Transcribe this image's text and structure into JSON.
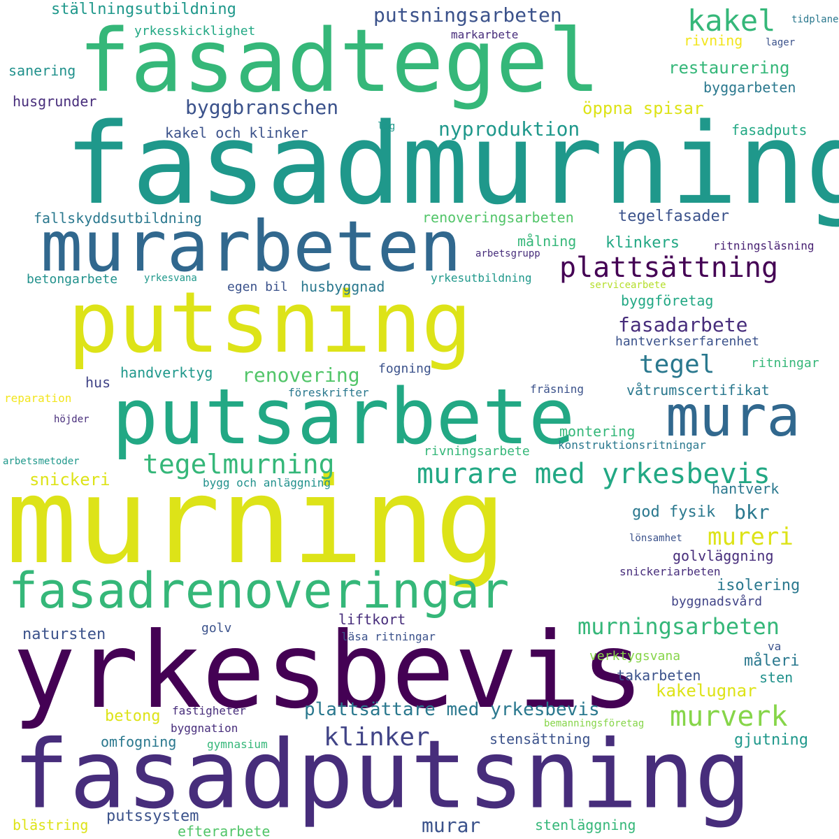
{
  "words": [
    "fasadtegel",
    "fasadmurning",
    "murarbeten",
    "putsning",
    "putsarbete",
    "murning",
    "yrkesbevis",
    "fasadputsning",
    "fasadrenoveringar",
    "mura",
    "plattsättning",
    "murare med yrkesbevis",
    "tegelmurning",
    "kakel",
    "putsningsarbeten",
    "byggbranschen",
    "nyproduktion",
    "öppna spisar",
    "restaurering",
    "byggarbeten",
    "fasadputs",
    "ställningsutbildning",
    "yrkesskicklighet",
    "markarbete",
    "tidplaner",
    "lager",
    "rivning",
    "sanering",
    "husgrunder",
    "kakel och klinker",
    "lag",
    "fallskyddsutbildning",
    "renoveringsarbeten",
    "tegelfasader",
    "målning",
    "klinkers",
    "arbetsgrupp",
    "ritningsläsning",
    "betongarbete",
    "yrkesvana",
    "egen bil",
    "husbyggnad",
    "yrkesutbildning",
    "servicearbete",
    "byggföretag",
    "fasadarbete",
    "hantverkserfarenhet",
    "tegel",
    "renovering",
    "handverktyg",
    "fogning",
    "ritningar",
    "hus",
    "föreskrifter",
    "fräsning",
    "våtrumscertifikat",
    "reparation",
    "höjder",
    "montering",
    "rivningsarbete",
    "konstruktionsritningar",
    "arbetsmetoder",
    "snickeri",
    "bygg och anläggning",
    "hantverk",
    "god fysik",
    "bkr",
    "mureri",
    "lönsamhet",
    "golvläggning",
    "snickeriarbeten",
    "isolering",
    "byggnadsvård",
    "liftkort",
    "murningsarbeten",
    "natursten",
    "golv",
    "läsa ritningar",
    "va",
    "verktygsvana",
    "måleri",
    "takarbeten",
    "sten",
    "kakelugnar",
    "murverk",
    "plattsättare med yrkesbevis",
    "betong",
    "fastigheter",
    "bemanningsföretag",
    "klinker",
    "byggnation",
    "omfogning",
    "gymnasium",
    "stensättning",
    "gjutning",
    "putssystem",
    "blästring",
    "efterarbete",
    "murar",
    "stenläggning"
  ]
}
